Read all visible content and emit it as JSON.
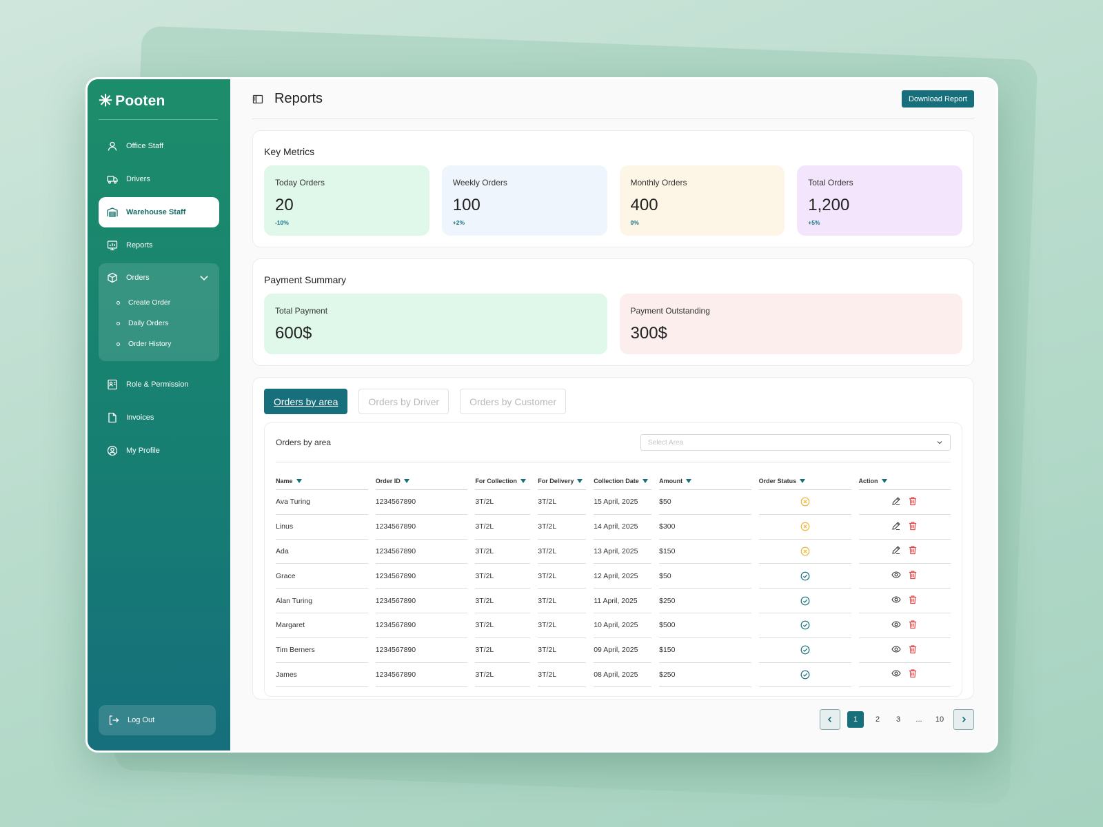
{
  "brand": {
    "name": "Pooten",
    "icon": "asterisk-logo-icon"
  },
  "sidebar": {
    "items": [
      {
        "label": "Office Staff",
        "icon": "user-icon"
      },
      {
        "label": "Drivers",
        "icon": "truck-icon"
      },
      {
        "label": "Warehouse Staff",
        "icon": "warehouse-icon",
        "active": true
      },
      {
        "label": "Reports",
        "icon": "report-icon"
      }
    ],
    "orders_group": {
      "label": "Orders",
      "icon": "box-icon",
      "subitems": [
        "Create Order",
        "Daily Orders",
        "Order History"
      ]
    },
    "items_bottom": [
      {
        "label": "Role & Permission",
        "icon": "id-card-icon"
      },
      {
        "label": "Invoices",
        "icon": "document-icon"
      },
      {
        "label": "My Profile",
        "icon": "profile-circle-icon"
      }
    ],
    "logout_label": "Log Out"
  },
  "header": {
    "title": "Reports",
    "download_label": "Download Report"
  },
  "key_metrics": {
    "title": "Key Metrics",
    "cards": [
      {
        "label": "Today Orders",
        "value": "20",
        "delta": "-10%",
        "color": "#dff8ea"
      },
      {
        "label": "Weekly Orders",
        "value": "100",
        "delta": "+2%",
        "color": "#eef5fc"
      },
      {
        "label": "Monthly Orders",
        "value": "400",
        "delta": "0%",
        "color": "#fdf6e6"
      },
      {
        "label": "Total Orders",
        "value": "1,200",
        "delta": "+5%",
        "color": "#f3e6fc"
      }
    ]
  },
  "payment_summary": {
    "title": "Payment Summary",
    "cards": [
      {
        "label": "Total Payment",
        "value": "600$",
        "color": "#dff8ea"
      },
      {
        "label": "Payment Outstanding",
        "value": "300$",
        "color": "#fdeeee"
      }
    ]
  },
  "tabs": [
    "Orders by area",
    "Orders by Driver",
    "Orders by Customer"
  ],
  "table_section": {
    "title": "Orders by area",
    "select_placeholder": "Select Area",
    "columns": [
      "Name",
      "Order ID",
      "For Collection",
      "For Delivery",
      "Collection Date",
      "Amount",
      "Order Status",
      "Action"
    ],
    "rows": [
      {
        "name": "Ava Turing",
        "order_id": "1234567890",
        "collection": "3T/2L",
        "delivery": "3T/2L",
        "date": "15 April, 2025",
        "amount": "$50",
        "status": "cancelled",
        "action": "edit"
      },
      {
        "name": "Linus",
        "order_id": "1234567890",
        "collection": "3T/2L",
        "delivery": "3T/2L",
        "date": "14 April, 2025",
        "amount": "$300",
        "status": "cancelled",
        "action": "edit"
      },
      {
        "name": "Ada",
        "order_id": "1234567890",
        "collection": "3T/2L",
        "delivery": "3T/2L",
        "date": "13 April, 2025",
        "amount": "$150",
        "status": "cancelled",
        "action": "edit"
      },
      {
        "name": "Grace",
        "order_id": "1234567890",
        "collection": "3T/2L",
        "delivery": "3T/2L",
        "date": "12 April, 2025",
        "amount": "$50",
        "status": "completed",
        "action": "view"
      },
      {
        "name": "Alan Turing",
        "order_id": "1234567890",
        "collection": "3T/2L",
        "delivery": "3T/2L",
        "date": "11 April, 2025",
        "amount": "$250",
        "status": "completed",
        "action": "view"
      },
      {
        "name": "Margaret",
        "order_id": "1234567890",
        "collection": "3T/2L",
        "delivery": "3T/2L",
        "date": "10 April, 2025",
        "amount": "$500",
        "status": "completed",
        "action": "view"
      },
      {
        "name": "Tim Berners",
        "order_id": "1234567890",
        "collection": "3T/2L",
        "delivery": "3T/2L",
        "date": "09 April, 2025",
        "amount": "$150",
        "status": "completed",
        "action": "view"
      },
      {
        "name": "James",
        "order_id": "1234567890",
        "collection": "3T/2L",
        "delivery": "3T/2L",
        "date": "08 April, 2025",
        "amount": "$250",
        "status": "completed",
        "action": "view"
      }
    ]
  },
  "pagination": {
    "pages": [
      "1",
      "2",
      "3",
      "...",
      "10"
    ],
    "current": "1"
  },
  "colors": {
    "accent": "#176f7c",
    "cancelled": "#f2b233",
    "completed": "#176f7c",
    "delete": "#e54848"
  }
}
